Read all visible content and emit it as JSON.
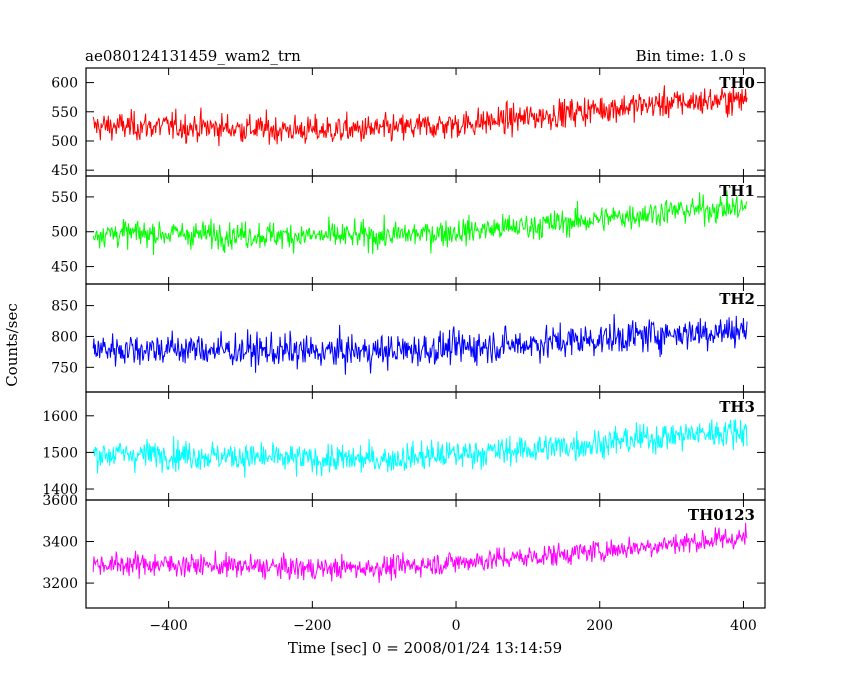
{
  "header": {
    "title": "ae080124131459_wam2_trn",
    "bin_time": "Bin time: 1.0 s"
  },
  "chart_data": {
    "type": "line",
    "xlabel": "Time [sec] 0 = 2008/01/24 13:14:59",
    "ylabel": "Counts/sec",
    "xlim": [
      -515,
      430
    ],
    "x_ticks": [
      -400,
      -200,
      0,
      200,
      400
    ],
    "x_tick_labels": [
      "−400",
      "−200",
      "0",
      "200",
      "400"
    ],
    "x_data_range": [
      -505,
      405
    ],
    "bin_time_s": 1.0,
    "grid": false,
    "panels": [
      {
        "name": "TH0",
        "color": "#ff0000",
        "ylim": [
          440,
          625
        ],
        "y_ticks": [
          450,
          500,
          550,
          600
        ],
        "mean_start": 525,
        "mean_end": 572,
        "spread": 38,
        "trend": [
          [
            -505,
            525
          ],
          [
            -400,
            525
          ],
          [
            -200,
            518
          ],
          [
            -100,
            520
          ],
          [
            0,
            528
          ],
          [
            100,
            540
          ],
          [
            200,
            555
          ],
          [
            300,
            565
          ],
          [
            405,
            572
          ]
        ]
      },
      {
        "name": "TH1",
        "color": "#00ff00",
        "ylim": [
          425,
          580
        ],
        "y_ticks": [
          450,
          500,
          550
        ],
        "mean_start": 498,
        "mean_end": 535,
        "spread": 30,
        "trend": [
          [
            -505,
            498
          ],
          [
            -400,
            497
          ],
          [
            -200,
            494
          ],
          [
            -100,
            494
          ],
          [
            0,
            500
          ],
          [
            100,
            508
          ],
          [
            200,
            518
          ],
          [
            300,
            530
          ],
          [
            405,
            535
          ]
        ]
      },
      {
        "name": "TH2",
        "color": "#0000ff",
        "ylim": [
          710,
          885
        ],
        "y_ticks": [
          750,
          800,
          850
        ],
        "mean_start": 780,
        "mean_end": 810,
        "spread": 42,
        "trend": [
          [
            -505,
            780
          ],
          [
            -400,
            780
          ],
          [
            -200,
            775
          ],
          [
            -100,
            776
          ],
          [
            0,
            782
          ],
          [
            100,
            788
          ],
          [
            200,
            796
          ],
          [
            300,
            805
          ],
          [
            405,
            810
          ]
        ]
      },
      {
        "name": "TH3",
        "color": "#00ffff",
        "ylim": [
          1370,
          1665
        ],
        "y_ticks": [
          1400,
          1500,
          1600
        ],
        "mean_start": 1495,
        "mean_end": 1560,
        "spread": 62,
        "trend": [
          [
            -505,
            1495
          ],
          [
            -400,
            1495
          ],
          [
            -200,
            1480
          ],
          [
            -100,
            1482
          ],
          [
            0,
            1495
          ],
          [
            100,
            1508
          ],
          [
            200,
            1525
          ],
          [
            300,
            1545
          ],
          [
            405,
            1560
          ]
        ]
      },
      {
        "name": "TH0123",
        "color": "#ff00ff",
        "ylim": [
          3080,
          3600
        ],
        "y_ticks": [
          3200,
          3400,
          3600
        ],
        "mean_start": 3290,
        "mean_end": 3420,
        "spread": 85,
        "trend": [
          [
            -505,
            3290
          ],
          [
            -400,
            3290
          ],
          [
            -200,
            3270
          ],
          [
            -100,
            3275
          ],
          [
            0,
            3300
          ],
          [
            100,
            3325
          ],
          [
            200,
            3355
          ],
          [
            300,
            3390
          ],
          [
            405,
            3420
          ]
        ]
      }
    ]
  }
}
